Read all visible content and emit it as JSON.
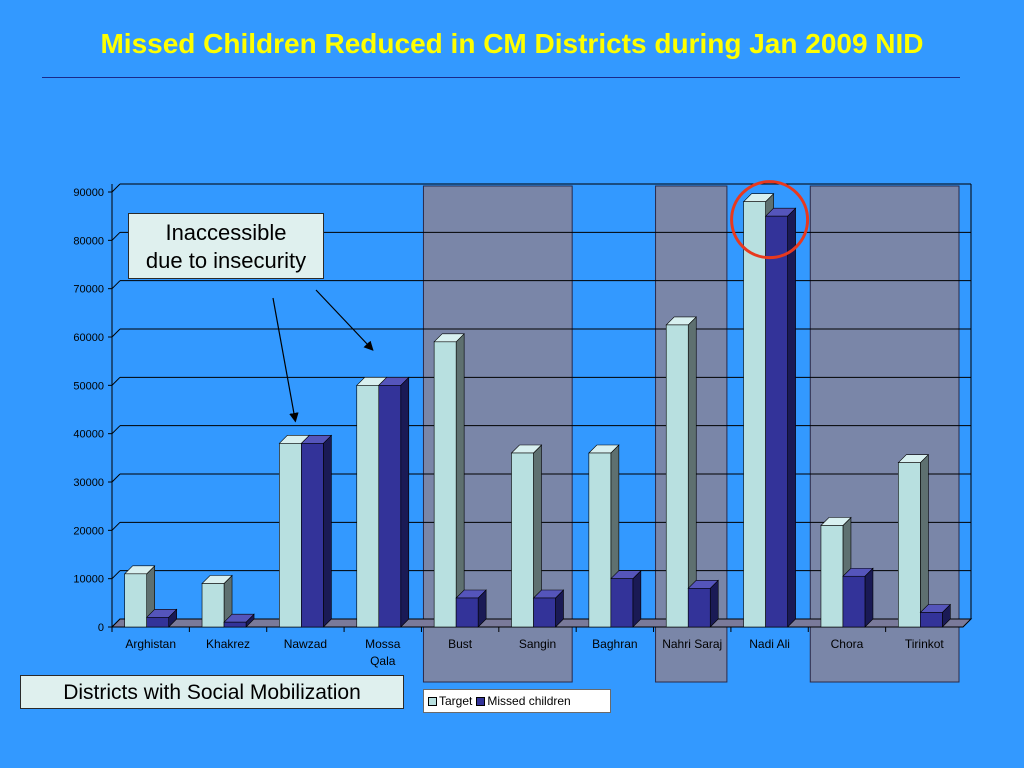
{
  "slide": {
    "title": "Missed Children  Reduced in CM Districts during Jan 2009 NID"
  },
  "callouts": {
    "insecurity_line1": "Inaccessible",
    "insecurity_line2": "due to insecurity",
    "social_mobilization": "Districts with Social Mobilization"
  },
  "colors": {
    "background": "#3399ff",
    "title": "#ffff00",
    "target": "#b8e0e0",
    "missed": "#333399",
    "shaded_region": "#7a86a8",
    "highlight_circle": "#e8391e"
  },
  "chart_data": {
    "type": "bar",
    "categories": [
      "Arghistan",
      "Khakrez",
      "Nawzad",
      "Mossa Qala",
      "Bust",
      "Sangin",
      "Baghran",
      "Nahri Saraj",
      "Nadi Ali",
      "Chora",
      "Tirinkot"
    ],
    "series": [
      {
        "name": "Target",
        "values": [
          11000,
          9000,
          38000,
          50000,
          59000,
          36000,
          36000,
          62500,
          88000,
          21000,
          34000
        ]
      },
      {
        "name": "Missed children",
        "values": [
          2000,
          1000,
          38000,
          50000,
          6000,
          6000,
          10000,
          8000,
          85000,
          10500,
          3000
        ]
      }
    ],
    "y_ticks": [
      "0",
      "10000",
      "20000",
      "30000",
      "40000",
      "50000",
      "60000",
      "70000",
      "80000",
      "90000"
    ],
    "ylim": [
      0,
      90000
    ],
    "grid": true,
    "legend": "bottom",
    "social_mobilization_districts": [
      "Bust",
      "Sangin",
      "Nahri Saraj",
      "Chora",
      "Tirinkot"
    ],
    "inaccessible_districts": [
      "Nawzad",
      "Mossa Qala"
    ],
    "highlighted_district": "Nadi Ali"
  }
}
